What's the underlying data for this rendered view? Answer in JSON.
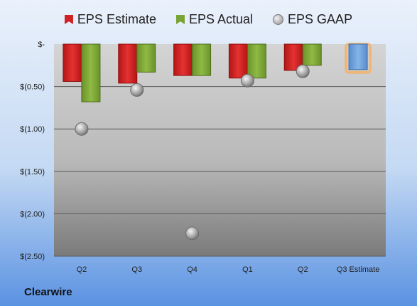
{
  "company": "Clearwire",
  "colors": {
    "estimate": "#d02020",
    "actual": "#79a332",
    "gaap": "#9a9a9a",
    "projected": "#6a9ed8",
    "projected_glow": "#f2b36a"
  },
  "legend": {
    "estimate": "EPS Estimate",
    "actual": "EPS Actual",
    "gaap": "EPS GAAP"
  },
  "chart_data": {
    "type": "bar",
    "categories": [
      "Q2",
      "Q3",
      "Q4",
      "Q1",
      "Q2",
      "Q3 Estimate"
    ],
    "y_tick_labels": [
      "$-",
      "$(0.50)",
      "$(1.00)",
      "$(1.50)",
      "$(2.00)",
      "$(2.50)"
    ],
    "ylim": [
      -2.5,
      0
    ],
    "y_ticks": [
      0,
      -0.5,
      -1.0,
      -1.5,
      -2.0,
      -2.5
    ],
    "grid": true,
    "legend_position": "top",
    "series": [
      {
        "name": "EPS Estimate",
        "values": [
          -0.44,
          -0.46,
          -0.37,
          -0.4,
          -0.31,
          -0.3
        ]
      },
      {
        "name": "EPS Actual",
        "values": [
          -0.68,
          -0.33,
          -0.37,
          -0.4,
          -0.25,
          null
        ]
      },
      {
        "name": "EPS GAAP",
        "values": [
          -1.0,
          -0.54,
          -2.23,
          -0.43,
          -0.32,
          null
        ]
      }
    ]
  }
}
